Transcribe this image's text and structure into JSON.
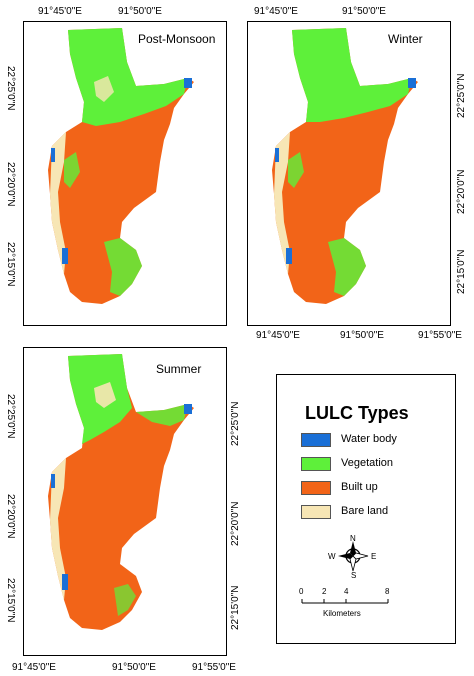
{
  "colors": {
    "water": "#1a6fd6",
    "vegetation": "#5ef03a",
    "builtup": "#f26418",
    "bareland": "#f7e6b5"
  },
  "panels": [
    {
      "title": "Post-Monsoon"
    },
    {
      "title": "Winter"
    },
    {
      "title": "Summer"
    }
  ],
  "ticks": {
    "top": [
      "91°45'0\"E",
      "91°50'0\"E"
    ],
    "bottom": [
      "91°45'0\"E",
      "91°50'0\"E",
      "91°55'0\"E"
    ],
    "left": [
      "22°25'0\"N",
      "22°20'0\"N",
      "22°15'0\"N"
    ]
  },
  "legend": {
    "title": "LULC Types",
    "items": [
      {
        "label": "Water body",
        "color": "#1a6fd6"
      },
      {
        "label": "Vegetation",
        "color": "#5ef03a"
      },
      {
        "label": "Built up",
        "color": "#f26418"
      },
      {
        "label": "Bare land",
        "color": "#f7e6b5"
      }
    ],
    "north_arrow": {
      "n": "N",
      "s": "S",
      "e": "E",
      "w": "W"
    },
    "scale": {
      "labels": [
        "0",
        "2",
        "4",
        "8"
      ],
      "unit": "Kilometers"
    }
  }
}
